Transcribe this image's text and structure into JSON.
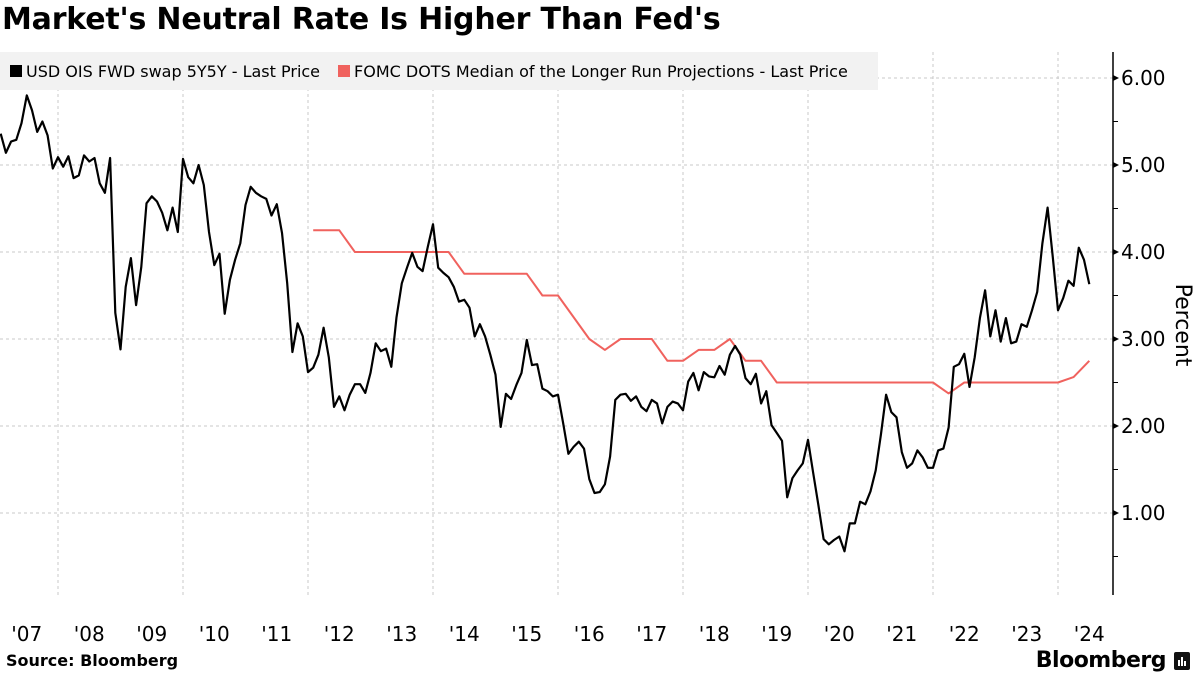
{
  "title": "Market's Neutral Rate Is Higher Than Fed's",
  "source": "Source: Bloomberg",
  "logo_text": "Bloomberg",
  "chart_data": {
    "type": "line",
    "title": "Market's Neutral Rate Is Higher Than Fed's",
    "ylabel": "Percent",
    "xlabel": "",
    "ylim": [
      0.05,
      6.3
    ],
    "y_axis_position": "right",
    "y_ticks": [
      "1.00",
      "2.00",
      "3.00",
      "4.00",
      "5.00",
      "6.00"
    ],
    "x_tick_labels": [
      "'07",
      "'08",
      "'09",
      "'10",
      "'11",
      "'12",
      "'13",
      "'14",
      "'15",
      "'16",
      "'17",
      "'18",
      "'19",
      "'20",
      "'21",
      "'22",
      "'23",
      "'24"
    ],
    "grid": true,
    "legend_position": "top-left",
    "series": [
      {
        "name": "USD OIS FWD swap 5Y5Y - Last Price",
        "color": "#000000",
        "points": [
          [
            "2007-02",
            5.36
          ],
          [
            "2007-03",
            5.14
          ],
          [
            "2007-04",
            5.27
          ],
          [
            "2007-05",
            5.29
          ],
          [
            "2007-06",
            5.48
          ],
          [
            "2007-07",
            5.8
          ],
          [
            "2007-08",
            5.63
          ],
          [
            "2007-09",
            5.38
          ],
          [
            "2007-10",
            5.5
          ],
          [
            "2007-11",
            5.34
          ],
          [
            "2007-12",
            4.96
          ],
          [
            "2008-01",
            5.09
          ],
          [
            "2008-02",
            4.98
          ],
          [
            "2008-03",
            5.1
          ],
          [
            "2008-04",
            4.85
          ],
          [
            "2008-05",
            4.88
          ],
          [
            "2008-06",
            5.11
          ],
          [
            "2008-07",
            5.04
          ],
          [
            "2008-08",
            5.08
          ],
          [
            "2008-09",
            4.79
          ],
          [
            "2008-10",
            4.68
          ],
          [
            "2008-11",
            5.08
          ],
          [
            "2008-12",
            3.3
          ],
          [
            "2009-01",
            2.88
          ],
          [
            "2009-02",
            3.6
          ],
          [
            "2009-03",
            3.93
          ],
          [
            "2009-04",
            3.39
          ],
          [
            "2009-05",
            3.83
          ],
          [
            "2009-06",
            4.56
          ],
          [
            "2009-07",
            4.64
          ],
          [
            "2009-08",
            4.58
          ],
          [
            "2009-09",
            4.45
          ],
          [
            "2009-10",
            4.25
          ],
          [
            "2009-11",
            4.51
          ],
          [
            "2009-12",
            4.23
          ],
          [
            "2010-01",
            5.07
          ],
          [
            "2010-02",
            4.86
          ],
          [
            "2010-03",
            4.79
          ],
          [
            "2010-04",
            5.0
          ],
          [
            "2010-05",
            4.77
          ],
          [
            "2010-06",
            4.23
          ],
          [
            "2010-07",
            3.85
          ],
          [
            "2010-08",
            3.98
          ],
          [
            "2010-09",
            3.29
          ],
          [
            "2010-10",
            3.68
          ],
          [
            "2010-11",
            3.91
          ],
          [
            "2010-12",
            4.1
          ],
          [
            "2011-01",
            4.54
          ],
          [
            "2011-02",
            4.75
          ],
          [
            "2011-03",
            4.68
          ],
          [
            "2011-04",
            4.64
          ],
          [
            "2011-05",
            4.61
          ],
          [
            "2011-06",
            4.42
          ],
          [
            "2011-07",
            4.55
          ],
          [
            "2011-08",
            4.22
          ],
          [
            "2011-09",
            3.64
          ],
          [
            "2011-10",
            2.85
          ],
          [
            "2011-11",
            3.18
          ],
          [
            "2011-12",
            3.03
          ],
          [
            "2012-01",
            2.62
          ],
          [
            "2012-02",
            2.67
          ],
          [
            "2012-03",
            2.82
          ],
          [
            "2012-04",
            3.13
          ],
          [
            "2012-05",
            2.79
          ],
          [
            "2012-06",
            2.22
          ],
          [
            "2012-07",
            2.34
          ],
          [
            "2012-08",
            2.18
          ],
          [
            "2012-09",
            2.36
          ],
          [
            "2012-10",
            2.48
          ],
          [
            "2012-11",
            2.48
          ],
          [
            "2012-12",
            2.38
          ],
          [
            "2013-01",
            2.61
          ],
          [
            "2013-02",
            2.95
          ],
          [
            "2013-03",
            2.86
          ],
          [
            "2013-04",
            2.89
          ],
          [
            "2013-05",
            2.68
          ],
          [
            "2013-06",
            3.25
          ],
          [
            "2013-07",
            3.64
          ],
          [
            "2013-08",
            3.82
          ],
          [
            "2013-09",
            3.99
          ],
          [
            "2013-10",
            3.83
          ],
          [
            "2013-11",
            3.78
          ],
          [
            "2013-12",
            4.06
          ],
          [
            "2014-01",
            4.32
          ],
          [
            "2014-02",
            3.82
          ],
          [
            "2014-03",
            3.76
          ],
          [
            "2014-04",
            3.71
          ],
          [
            "2014-05",
            3.6
          ],
          [
            "2014-06",
            3.43
          ],
          [
            "2014-07",
            3.45
          ],
          [
            "2014-08",
            3.36
          ],
          [
            "2014-09",
            3.03
          ],
          [
            "2014-10",
            3.17
          ],
          [
            "2014-11",
            3.03
          ],
          [
            "2014-12",
            2.82
          ],
          [
            "2015-01",
            2.59
          ],
          [
            "2015-02",
            1.99
          ],
          [
            "2015-03",
            2.37
          ],
          [
            "2015-04",
            2.31
          ],
          [
            "2015-05",
            2.47
          ],
          [
            "2015-06",
            2.61
          ],
          [
            "2015-07",
            2.99
          ],
          [
            "2015-08",
            2.7
          ],
          [
            "2015-09",
            2.71
          ],
          [
            "2015-10",
            2.43
          ],
          [
            "2015-11",
            2.4
          ],
          [
            "2015-12",
            2.34
          ],
          [
            "2016-01",
            2.36
          ],
          [
            "2016-02",
            2.03
          ],
          [
            "2016-03",
            1.68
          ],
          [
            "2016-04",
            1.76
          ],
          [
            "2016-05",
            1.82
          ],
          [
            "2016-06",
            1.74
          ],
          [
            "2016-07",
            1.39
          ],
          [
            "2016-08",
            1.23
          ],
          [
            "2016-09",
            1.24
          ],
          [
            "2016-10",
            1.33
          ],
          [
            "2016-11",
            1.65
          ],
          [
            "2016-12",
            2.3
          ],
          [
            "2017-01",
            2.36
          ],
          [
            "2017-02",
            2.37
          ],
          [
            "2017-03",
            2.29
          ],
          [
            "2017-04",
            2.34
          ],
          [
            "2017-05",
            2.22
          ],
          [
            "2017-06",
            2.17
          ],
          [
            "2017-07",
            2.3
          ],
          [
            "2017-08",
            2.26
          ],
          [
            "2017-09",
            2.03
          ],
          [
            "2017-10",
            2.22
          ],
          [
            "2017-11",
            2.28
          ],
          [
            "2017-12",
            2.26
          ],
          [
            "2018-01",
            2.18
          ],
          [
            "2018-02",
            2.51
          ],
          [
            "2018-03",
            2.61
          ],
          [
            "2018-04",
            2.41
          ],
          [
            "2018-05",
            2.62
          ],
          [
            "2018-06",
            2.57
          ],
          [
            "2018-07",
            2.56
          ],
          [
            "2018-08",
            2.69
          ],
          [
            "2018-09",
            2.59
          ],
          [
            "2018-10",
            2.82
          ],
          [
            "2018-11",
            2.92
          ],
          [
            "2018-12",
            2.82
          ],
          [
            "2019-01",
            2.55
          ],
          [
            "2019-02",
            2.48
          ],
          [
            "2019-03",
            2.6
          ],
          [
            "2019-04",
            2.26
          ],
          [
            "2019-05",
            2.4
          ],
          [
            "2019-06",
            2.01
          ],
          [
            "2019-07",
            1.92
          ],
          [
            "2019-08",
            1.83
          ],
          [
            "2019-09",
            1.18
          ],
          [
            "2019-10",
            1.4
          ],
          [
            "2019-11",
            1.49
          ],
          [
            "2019-12",
            1.57
          ],
          [
            "2020-01",
            1.84
          ],
          [
            "2020-02",
            1.46
          ],
          [
            "2020-03",
            1.09
          ],
          [
            "2020-04",
            0.7
          ],
          [
            "2020-05",
            0.64
          ],
          [
            "2020-06",
            0.69
          ],
          [
            "2020-07",
            0.73
          ],
          [
            "2020-08",
            0.56
          ],
          [
            "2020-09",
            0.88
          ],
          [
            "2020-10",
            0.88
          ],
          [
            "2020-11",
            1.13
          ],
          [
            "2020-12",
            1.1
          ],
          [
            "2021-01",
            1.25
          ],
          [
            "2021-02",
            1.49
          ],
          [
            "2021-03",
            1.9
          ],
          [
            "2021-04",
            2.36
          ],
          [
            "2021-05",
            2.16
          ],
          [
            "2021-06",
            2.1
          ],
          [
            "2021-07",
            1.7
          ],
          [
            "2021-08",
            1.52
          ],
          [
            "2021-09",
            1.57
          ],
          [
            "2021-10",
            1.72
          ],
          [
            "2021-11",
            1.64
          ],
          [
            "2021-12",
            1.52
          ],
          [
            "2022-01",
            1.52
          ],
          [
            "2022-02",
            1.72
          ],
          [
            "2022-03",
            1.74
          ],
          [
            "2022-04",
            1.98
          ],
          [
            "2022-05",
            2.68
          ],
          [
            "2022-06",
            2.71
          ],
          [
            "2022-07",
            2.83
          ],
          [
            "2022-08",
            2.45
          ],
          [
            "2022-09",
            2.79
          ],
          [
            "2022-10",
            3.24
          ],
          [
            "2022-11",
            3.56
          ],
          [
            "2022-12",
            3.03
          ],
          [
            "2023-01",
            3.33
          ],
          [
            "2023-02",
            2.97
          ],
          [
            "2023-03",
            3.24
          ],
          [
            "2023-04",
            2.95
          ],
          [
            "2023-05",
            2.97
          ],
          [
            "2023-06",
            3.17
          ],
          [
            "2023-07",
            3.14
          ],
          [
            "2023-08",
            3.33
          ],
          [
            "2023-09",
            3.54
          ],
          [
            "2023-10",
            4.1
          ],
          [
            "2023-11",
            4.51
          ],
          [
            "2023-12",
            3.94
          ],
          [
            "2024-01",
            3.33
          ],
          [
            "2024-02",
            3.47
          ],
          [
            "2024-03",
            3.67
          ],
          [
            "2024-04",
            3.61
          ],
          [
            "2024-05",
            4.05
          ],
          [
            "2024-06",
            3.91
          ],
          [
            "2024-07",
            3.63
          ]
        ]
      },
      {
        "name": "FOMC DOTS Median of the Longer Run Projections - Last Price",
        "color": "#f0625e",
        "points": [
          [
            "2012-02",
            4.25
          ],
          [
            "2012-07",
            4.25
          ],
          [
            "2012-10",
            4.0
          ],
          [
            "2014-04",
            4.0
          ],
          [
            "2014-07",
            3.75
          ],
          [
            "2015-07",
            3.75
          ],
          [
            "2015-10",
            3.5
          ],
          [
            "2016-01",
            3.5
          ],
          [
            "2016-07",
            3.0
          ],
          [
            "2016-10",
            2.875
          ],
          [
            "2017-01",
            3.0
          ],
          [
            "2017-07",
            3.0
          ],
          [
            "2017-10",
            2.75
          ],
          [
            "2018-01",
            2.75
          ],
          [
            "2018-04",
            2.875
          ],
          [
            "2018-07",
            2.875
          ],
          [
            "2018-10",
            3.0
          ],
          [
            "2019-01",
            2.75
          ],
          [
            "2019-04",
            2.75
          ],
          [
            "2019-07",
            2.5
          ],
          [
            "2022-01",
            2.5
          ],
          [
            "2022-04",
            2.375
          ],
          [
            "2022-07",
            2.5
          ],
          [
            "2024-01",
            2.5
          ],
          [
            "2024-04",
            2.5625
          ],
          [
            "2024-07",
            2.75
          ]
        ]
      }
    ]
  }
}
